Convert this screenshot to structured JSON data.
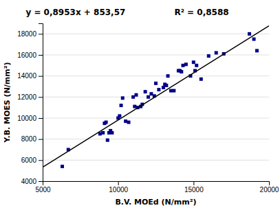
{
  "chart_data": {
    "type": "scatter",
    "annotations": [
      "y = 0,8953x + 853,57",
      "R² = 0,8588"
    ],
    "xlabel": "B.V. MOEd (N/mm²)",
    "ylabel": "Y.B. MOES (N/mm²)",
    "series": [
      {
        "type": "scatter",
        "color": "#00008B",
        "marker": "square",
        "x": [
          6300,
          6700,
          8800,
          9000,
          9100,
          9200,
          9300,
          9400,
          9500,
          9600,
          10000,
          10100,
          10200,
          10300,
          10500,
          10700,
          11000,
          11100,
          11200,
          11300,
          11500,
          11600,
          11800,
          12000,
          12200,
          12400,
          12500,
          12700,
          13000,
          13100,
          13200,
          13300,
          13500,
          13700,
          14000,
          14100,
          14200,
          14300,
          14500,
          14800,
          15000,
          15100,
          15200,
          15500,
          16000,
          16500,
          17000,
          18700,
          19000,
          19200
        ],
        "values": [
          5400,
          7000,
          8500,
          8600,
          9500,
          9600,
          7900,
          8600,
          8800,
          8600,
          10000,
          10200,
          11200,
          11900,
          9700,
          9600,
          12000,
          11100,
          12200,
          11000,
          11100,
          11300,
          12500,
          12000,
          12300,
          12100,
          13300,
          12700,
          12900,
          13200,
          13100,
          14000,
          12600,
          12600,
          14500,
          14500,
          14400,
          15000,
          15100,
          14000,
          15300,
          14500,
          15000,
          13700,
          15900,
          16200,
          16100,
          18000,
          17500,
          16400
        ]
      },
      {
        "type": "line",
        "color": "#000000",
        "line_style": "solid",
        "x": [
          5000,
          20000
        ],
        "values": [
          5330.07,
          18759.57
        ]
      }
    ],
    "xlim": [
      5000,
      20000
    ],
    "ylim": [
      4000,
      19000
    ],
    "xticks": [
      5000,
      10000,
      15000,
      20000
    ],
    "yticks": [
      4000,
      6000,
      8000,
      10000,
      12000,
      14000,
      16000,
      18000
    ],
    "grid": "y"
  }
}
